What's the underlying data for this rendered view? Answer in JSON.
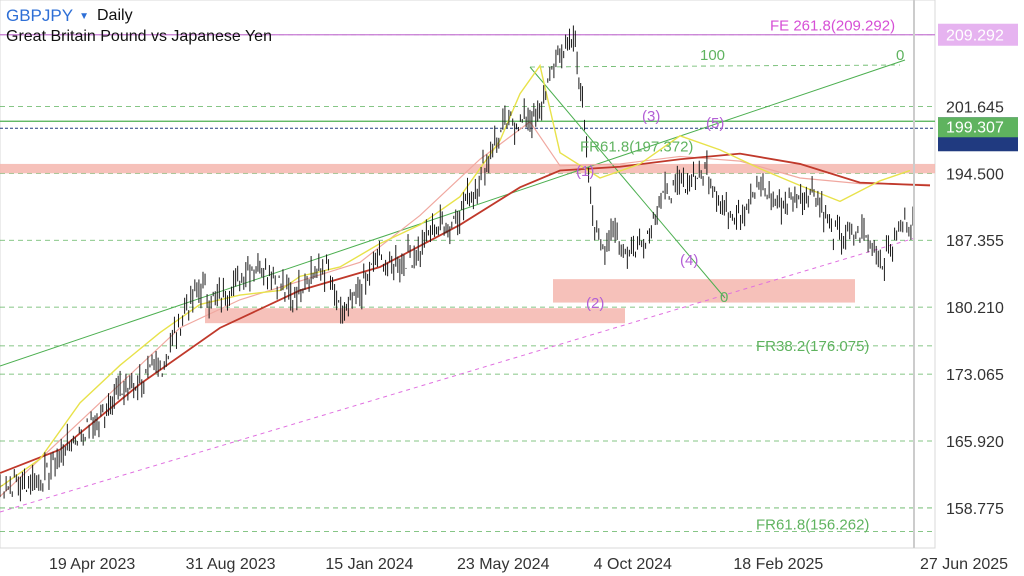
{
  "header": {
    "symbol": "GBPJPY",
    "caret_icon": "caret-down-icon",
    "interval": "Daily",
    "subtitle": "Great Britain Pound vs Japanese Yen"
  },
  "colors": {
    "background": "#ffffff",
    "grid": "#5fb35f",
    "price": "#1a1a1a",
    "ma_fast": "#e8e24a",
    "ma_mid": "#f0a8a0",
    "ma_slow": "#c0392b",
    "zone": "#f4b6ae",
    "wave_label": "#b35fd6",
    "fib_label": "#5fb35f",
    "fe_label": "#d64fd6",
    "trend_green": "#4caf50",
    "support_pink": "#e070e0",
    "level_blue": "#203a80"
  },
  "chart_data": {
    "type": "line",
    "title": "GBPJPY Daily",
    "subtitle": "Great Britain Pound vs Japanese Yen",
    "ylim": [
      154.5,
      213
    ],
    "y_ticks": [
      201.645,
      194.5,
      187.355,
      180.21,
      173.065,
      165.92,
      158.775
    ],
    "y_tick_labels": [
      "201.645",
      "194.500",
      "187.355",
      "180.210",
      "173.065",
      "165.920",
      "158.775"
    ],
    "x_tick_labels": [
      "19 Apr 2023",
      "31 Aug 2023",
      "15 Jan 2024",
      "23 May 2024",
      "4 Oct 2024",
      "18 Feb 2025",
      "27 Jun 2025"
    ],
    "x_ticks": [
      "2023-04-19",
      "2023-08-31",
      "2024-01-15",
      "2024-05-23",
      "2024-10-04",
      "2025-02-18",
      "2025-06-27"
    ],
    "series": [
      {
        "x": [
          "2023-01-12",
          "2023-02-23",
          "2023-03-23",
          "2023-04-19",
          "2023-05-04",
          "2023-05-25",
          "2023-06-20",
          "2023-07-12",
          "2023-07-28",
          "2023-08-11",
          "2023-08-31",
          "2023-09-20",
          "2023-10-05",
          "2023-10-24",
          "2023-11-13",
          "2023-11-30",
          "2023-12-12",
          "2023-12-27",
          "2024-01-15",
          "2024-02-06",
          "2024-02-26",
          "2024-03-13",
          "2024-03-28",
          "2024-04-22",
          "2024-05-07",
          "2024-05-23",
          "2024-06-07",
          "2024-06-24",
          "2024-07-10",
          "2024-07-29",
          "2024-08-05",
          "2024-08-13",
          "2024-08-23",
          "2024-09-06",
          "2024-09-16",
          "2024-10-04",
          "2024-10-21",
          "2024-11-06",
          "2024-11-20",
          "2024-12-05",
          "2024-12-24",
          "2025-01-09",
          "2025-01-27",
          "2025-02-18",
          "2025-03-05",
          "2025-03-20",
          "2025-04-08",
          "2025-04-22",
          "2025-05-08",
          "2025-05-26",
          "2025-06-13",
          "2025-06-27"
        ],
        "values": [
          161,
          162,
          166,
          168,
          171,
          172,
          174,
          180,
          182,
          181,
          183,
          185,
          184,
          181,
          184,
          184,
          179,
          181,
          185,
          185,
          186,
          189,
          189,
          193,
          197,
          200,
          200,
          201,
          207,
          209,
          202,
          191,
          187,
          188,
          186,
          187,
          192,
          193,
          194,
          195,
          190,
          191,
          193,
          191,
          192,
          193,
          188,
          188,
          188,
          185,
          189,
          190
        ]
      },
      {
        "name": "MA fast",
        "x": [],
        "values": []
      },
      {
        "name": "MA mid",
        "x": [],
        "values": []
      },
      {
        "name": "MA slow",
        "x": [],
        "values": []
      }
    ],
    "ma_slow_points": [
      [
        0,
        162.5
      ],
      [
        60,
        165
      ],
      [
        140,
        172
      ],
      [
        220,
        178
      ],
      [
        300,
        182
      ],
      [
        380,
        184.5
      ],
      [
        460,
        189
      ],
      [
        520,
        193
      ],
      [
        560,
        194.8
      ],
      [
        620,
        195.2
      ],
      [
        680,
        196
      ],
      [
        740,
        196.6
      ],
      [
        800,
        195.5
      ],
      [
        860,
        193.5
      ],
      [
        930,
        193.2
      ]
    ],
    "ma_mid_points": [
      [
        0,
        160
      ],
      [
        60,
        166
      ],
      [
        120,
        172
      ],
      [
        180,
        178
      ],
      [
        240,
        181
      ],
      [
        300,
        183
      ],
      [
        360,
        185
      ],
      [
        420,
        190
      ],
      [
        480,
        196
      ],
      [
        530,
        200
      ],
      [
        560,
        195.3
      ],
      [
        620,
        195.5
      ],
      [
        680,
        196.3
      ],
      [
        740,
        195.8
      ],
      [
        800,
        194
      ],
      [
        860,
        193.4
      ],
      [
        930,
        193.3
      ]
    ],
    "ma_fast_points": [
      [
        0,
        161
      ],
      [
        40,
        164
      ],
      [
        80,
        170
      ],
      [
        120,
        174
      ],
      [
        160,
        177.5
      ],
      [
        200,
        180.5
      ],
      [
        240,
        181.5
      ],
      [
        280,
        182
      ],
      [
        300,
        183.5
      ],
      [
        340,
        184.5
      ],
      [
        380,
        187
      ],
      [
        420,
        189
      ],
      [
        460,
        192
      ],
      [
        500,
        198
      ],
      [
        520,
        203
      ],
      [
        540,
        206
      ],
      [
        560,
        196.7
      ],
      [
        600,
        194
      ],
      [
        640,
        195.5
      ],
      [
        680,
        198.5
      ],
      [
        720,
        197
      ],
      [
        760,
        195
      ],
      [
        800,
        193.2
      ],
      [
        840,
        191.5
      ],
      [
        880,
        193.7
      ],
      [
        910,
        194.8
      ]
    ],
    "annotations": [
      {
        "text": "FE 261.8(209.292)",
        "y": 209.292,
        "kind": "fib-extension"
      },
      {
        "text": "209.292",
        "y": 209.292,
        "kind": "price-tag"
      },
      {
        "text": "199.307",
        "y": 199.307,
        "kind": "price-tag"
      },
      {
        "text": "FR61.8(197.372)",
        "y": 197.372,
        "kind": "fib-retracement"
      },
      {
        "text": "FR38.2(176.075)",
        "y": 176.075,
        "kind": "fib-retracement"
      },
      {
        "text": "FR61.8(156.262)",
        "y": 156.262,
        "kind": "fib-retracement"
      },
      {
        "text": "100",
        "kind": "fib-level"
      },
      {
        "text": "0",
        "kind": "fib-level"
      },
      {
        "text": "0",
        "kind": "fib-level"
      },
      {
        "text": "(1)",
        "kind": "wave"
      },
      {
        "text": "(2)",
        "kind": "wave"
      },
      {
        "text": "(3)",
        "kind": "wave"
      },
      {
        "text": "(4)",
        "kind": "wave"
      },
      {
        "text": "(5)",
        "kind": "wave"
      }
    ],
    "zones": [
      {
        "from": 194.5,
        "to": 195.5,
        "span": "full"
      },
      {
        "from": 178.5,
        "to": 180.1,
        "span": "left"
      },
      {
        "from": 180.7,
        "to": 183.2,
        "span": "right"
      }
    ],
    "grid": true
  }
}
